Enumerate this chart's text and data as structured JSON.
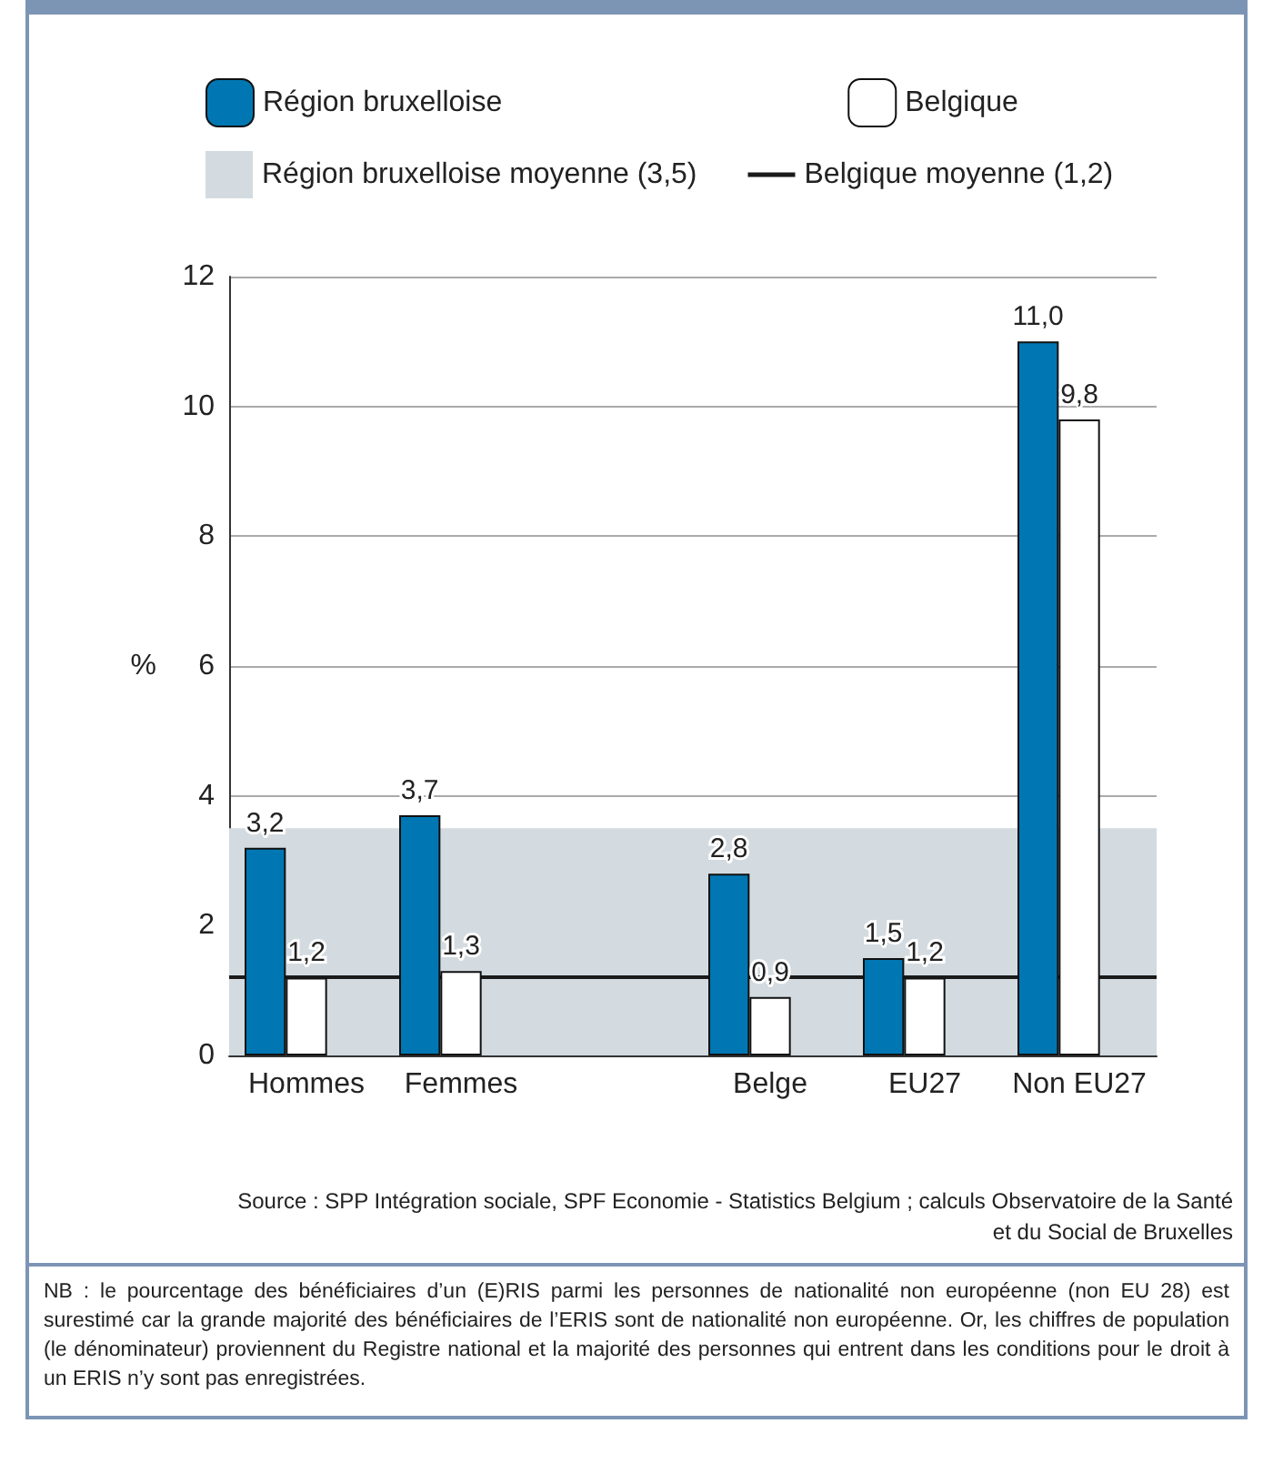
{
  "chart_data": {
    "type": "bar",
    "ylabel": "%",
    "categories": [
      "Hommes",
      "Femmes",
      null,
      "Belge",
      "EU27",
      "Non EU27"
    ],
    "series": [
      {
        "name": "Région bruxelloise",
        "color": "#0077b3",
        "values": [
          3.2,
          3.7,
          null,
          2.8,
          1.5,
          11.0
        ],
        "value_labels": [
          "3,2",
          "3,7",
          null,
          "2,8",
          "1,5",
          "11,0"
        ]
      },
      {
        "name": "Belgique",
        "color": "#ffffff",
        "values": [
          1.2,
          1.3,
          null,
          0.9,
          1.2,
          9.8
        ],
        "value_labels": [
          "1,2",
          "1,3",
          null,
          "0,9",
          "1,2",
          "9,8"
        ]
      }
    ],
    "bands": [
      {
        "axis": "y",
        "from": 0,
        "to": 3.5,
        "label": "Région bruxelloise moyenne (3,5)",
        "color": "#d3dbe0"
      }
    ],
    "ref_lines": [
      {
        "axis": "y",
        "value": 1.2,
        "label": "Belgique moyenne (1,2)",
        "color": "#1a1a1a"
      }
    ],
    "ylim": [
      0,
      12
    ],
    "yticks": [
      0,
      2,
      4,
      6,
      8,
      10,
      12
    ],
    "grid": "y",
    "legend": "top",
    "annotations": [
      "Source : SPP Intégration sociale, SPF Economie - Statistics Belgium ; calculs Observatoire de la Santé et du Social de Bruxelles",
      "NB : le pourcentage des bénéficiaires d’un (E)RIS parmi les personnes de nationalité non européenne (non EU 28) est surestimé car la grande majorité des bénéficiaires de l’ERIS sont de nationalité non européenne. Or, les chiffres de population (le dénominateur) proviennent du Registre national et la majorité des personnes qui entrent dans les conditions pour le droit à un ERIS n’y sont pas enregistrées."
    ]
  }
}
